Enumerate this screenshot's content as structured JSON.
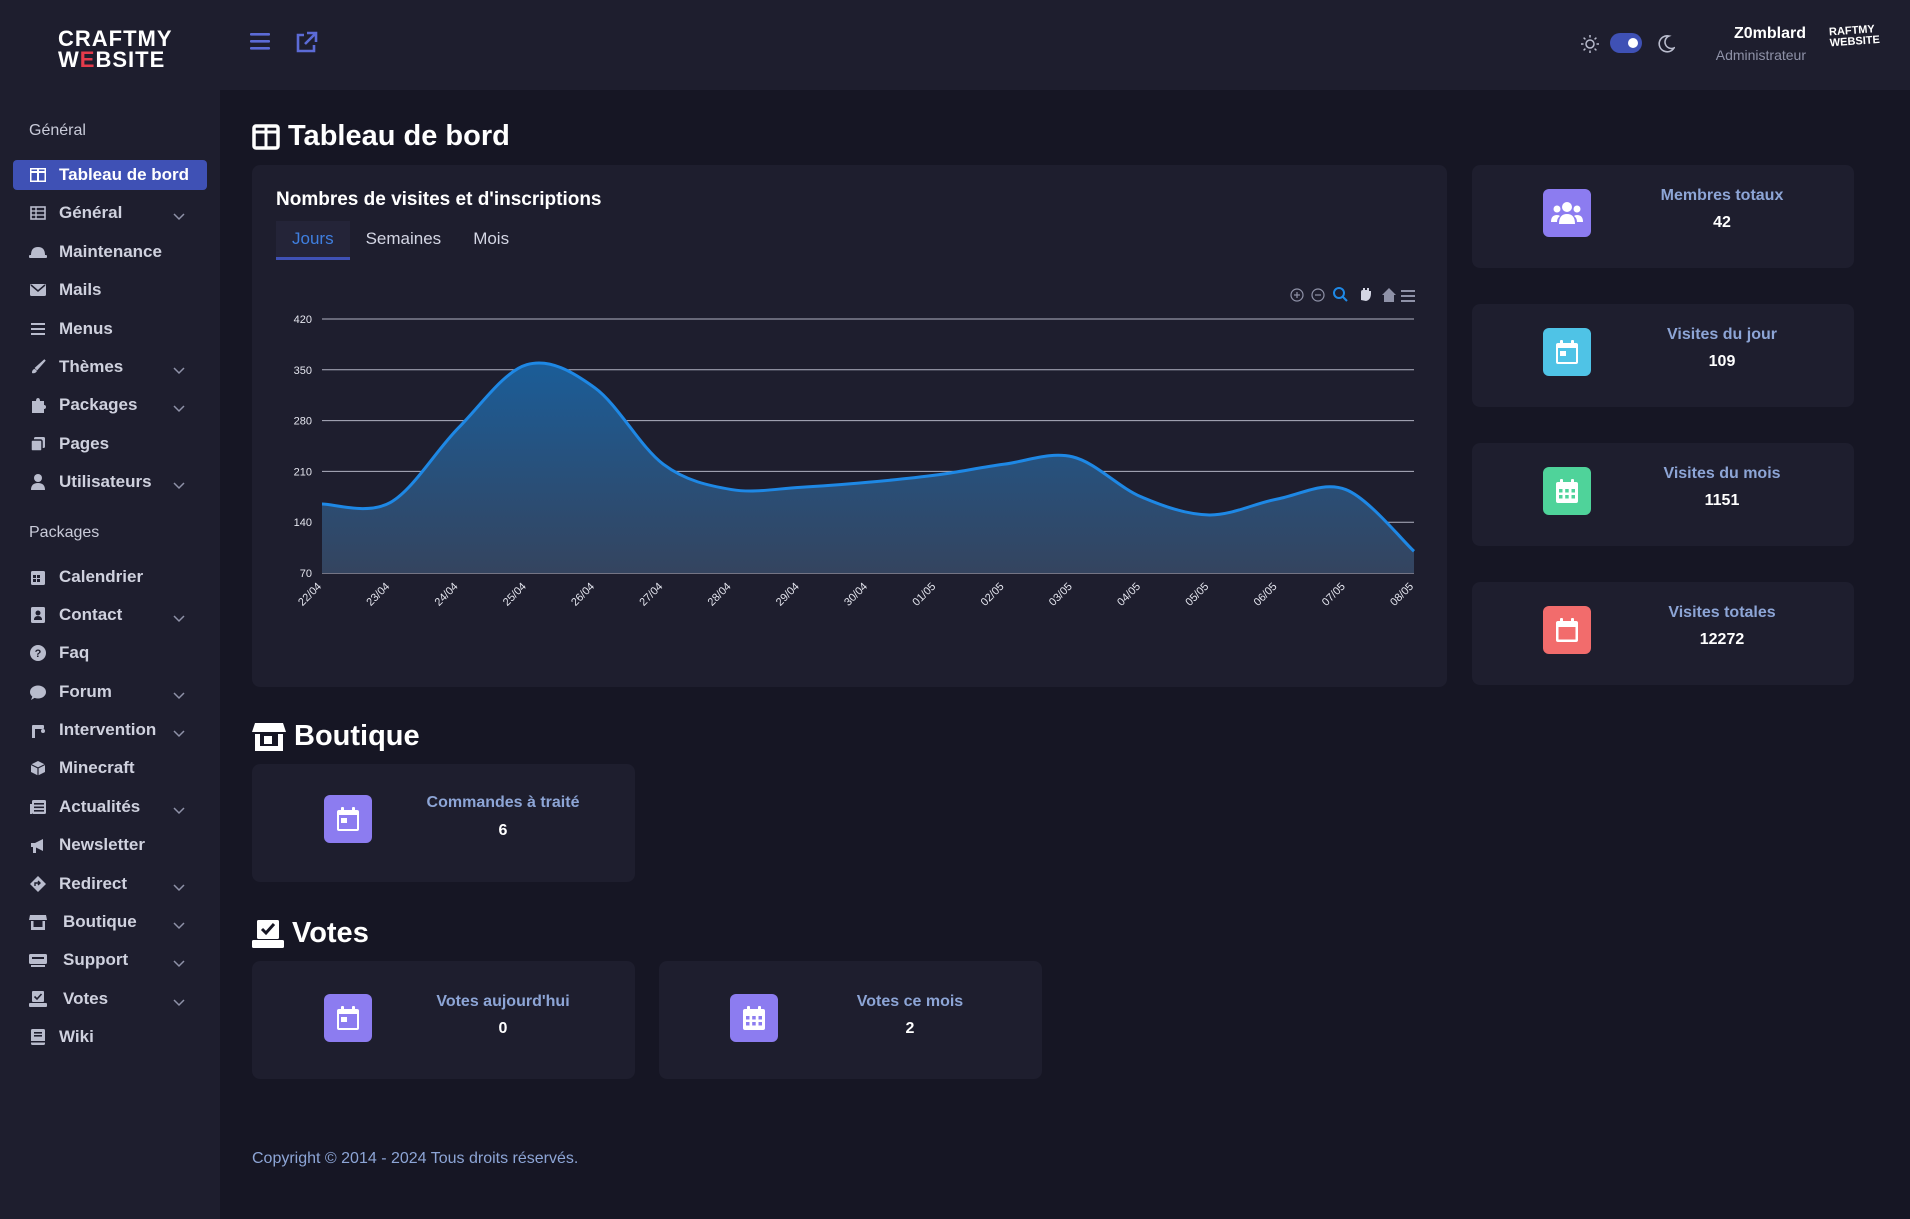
{
  "logo": {
    "line1": "CRAFTMY",
    "line2a": "W",
    "line2b": "E",
    "line2c": "BSITE"
  },
  "sidebar": {
    "section_general": "Général",
    "section_packages": "Packages",
    "items": [
      {
        "label": "Tableau de bord",
        "icon": "dashboard-icon"
      },
      {
        "label": "Général",
        "icon": "table-icon"
      },
      {
        "label": "Maintenance",
        "icon": "helmet-icon"
      },
      {
        "label": "Mails",
        "icon": "mail-icon"
      },
      {
        "label": "Menus",
        "icon": "menu-icon"
      },
      {
        "label": "Thèmes",
        "icon": "brush-icon"
      },
      {
        "label": "Packages",
        "icon": "puzzle-icon"
      },
      {
        "label": "Pages",
        "icon": "pages-icon"
      },
      {
        "label": "Utilisateurs",
        "icon": "user-icon"
      },
      {
        "label": "Calendrier",
        "icon": "calendar-icon"
      },
      {
        "label": "Contact",
        "icon": "contact-icon"
      },
      {
        "label": "Faq",
        "icon": "question-icon"
      },
      {
        "label": "Forum",
        "icon": "comment-icon"
      },
      {
        "label": "Intervention",
        "icon": "tool-icon"
      },
      {
        "label": "Minecraft",
        "icon": "cube-icon"
      },
      {
        "label": "Actualités",
        "icon": "news-icon"
      },
      {
        "label": "Newsletter",
        "icon": "megaphone-icon"
      },
      {
        "label": "Redirect",
        "icon": "diamond-arrow-icon"
      },
      {
        "label": "Boutique",
        "icon": "store-icon"
      },
      {
        "label": "Support",
        "icon": "support-icon"
      },
      {
        "label": "Votes",
        "icon": "vote-icon"
      },
      {
        "label": "Wiki",
        "icon": "book-icon"
      }
    ]
  },
  "topbar": {
    "user_name": "Z0mblard",
    "user_role": "Administrateur",
    "avatar_text_1": "RAFTMY",
    "avatar_text_2": "WEBSITE"
  },
  "dashboard": {
    "title": "Tableau de bord",
    "chart_card_title": "Nombres de visites et d'inscriptions",
    "tabs": [
      "Jours",
      "Semaines",
      "Mois"
    ],
    "active_tab": "Jours"
  },
  "stats": [
    {
      "label": "Membres totaux",
      "value": "42",
      "color": "#8c7cf0",
      "icon": "users-icon"
    },
    {
      "label": "Visites du jour",
      "value": "109",
      "color": "#4fc3e6",
      "icon": "calendar-day-icon"
    },
    {
      "label": "Visites du mois",
      "value": "1151",
      "color": "#4fd39a",
      "icon": "calendar-month-icon"
    },
    {
      "label": "Visites totales",
      "value": "12272",
      "color": "#f26c6c",
      "icon": "calendar-total-icon"
    }
  ],
  "boutique": {
    "title": "Boutique",
    "card": {
      "label": "Commandes à traité",
      "value": "6",
      "color": "#8c7cf0"
    }
  },
  "votes": {
    "title": "Votes",
    "cards": [
      {
        "label": "Votes aujourd'hui",
        "value": "0",
        "color": "#8c7cf0"
      },
      {
        "label": "Votes ce mois",
        "value": "2",
        "color": "#8c7cf0"
      }
    ]
  },
  "footer": {
    "copyright": "Copyright © 2014 - 2024 Tous droits réservés."
  },
  "chart_data": {
    "type": "area",
    "categories": [
      "22/04",
      "23/04",
      "24/04",
      "25/04",
      "26/04",
      "27/04",
      "28/04",
      "29/04",
      "30/04",
      "01/05",
      "02/05",
      "03/05",
      "04/05",
      "05/05",
      "06/05",
      "07/05",
      "08/05"
    ],
    "series": [
      {
        "values": [
          165,
          167,
          270,
          357,
          325,
          220,
          185,
          188,
          195,
          205,
          220,
          230,
          175,
          150,
          172,
          185,
          100
        ]
      }
    ],
    "yticks": [
      70,
      140,
      210,
      280,
      350,
      420
    ],
    "ylim": [
      70,
      420
    ],
    "grid": true,
    "color": "#1e88e5"
  }
}
